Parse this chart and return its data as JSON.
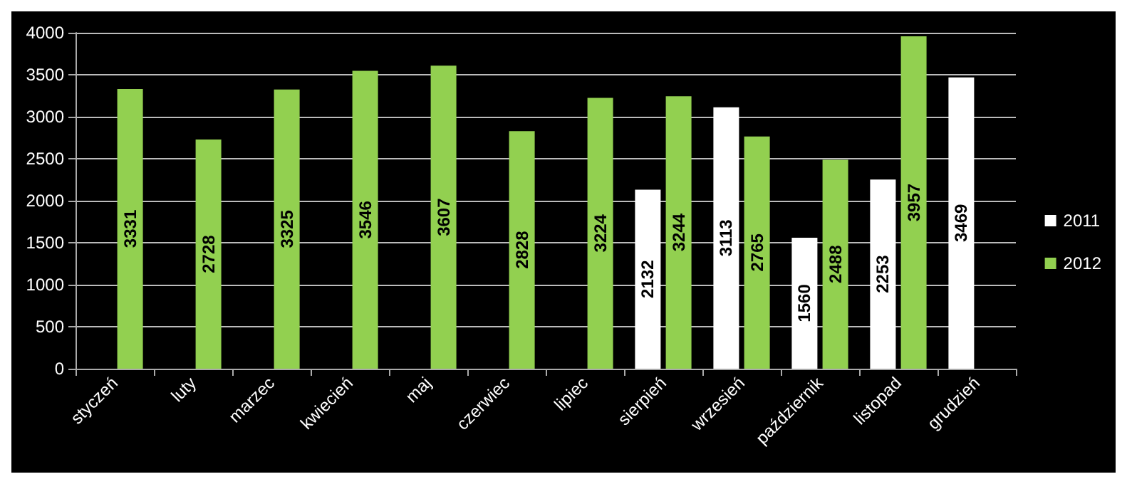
{
  "chart_data": {
    "type": "bar",
    "categories": [
      "styczeń",
      "luty",
      "marzec",
      "kwiecień",
      "maj",
      "czerwiec",
      "lipiec",
      "sierpień",
      "wrzesień",
      "październik",
      "listopad",
      "grudzień"
    ],
    "series": [
      {
        "name": "2011",
        "color": "#ffffff",
        "values": [
          null,
          null,
          null,
          null,
          null,
          null,
          null,
          2132,
          3113,
          1560,
          2253,
          3469
        ]
      },
      {
        "name": "2012",
        "color": "#92d050",
        "values": [
          3331,
          2728,
          3325,
          3546,
          3607,
          2828,
          3224,
          3244,
          2765,
          2488,
          3957,
          null
        ]
      }
    ],
    "ylim": [
      0,
      4000
    ],
    "yticks": [
      0,
      500,
      1000,
      1500,
      2000,
      2500,
      3000,
      3500,
      4000
    ],
    "grid": "y",
    "legend": "right",
    "data_labels": true
  }
}
